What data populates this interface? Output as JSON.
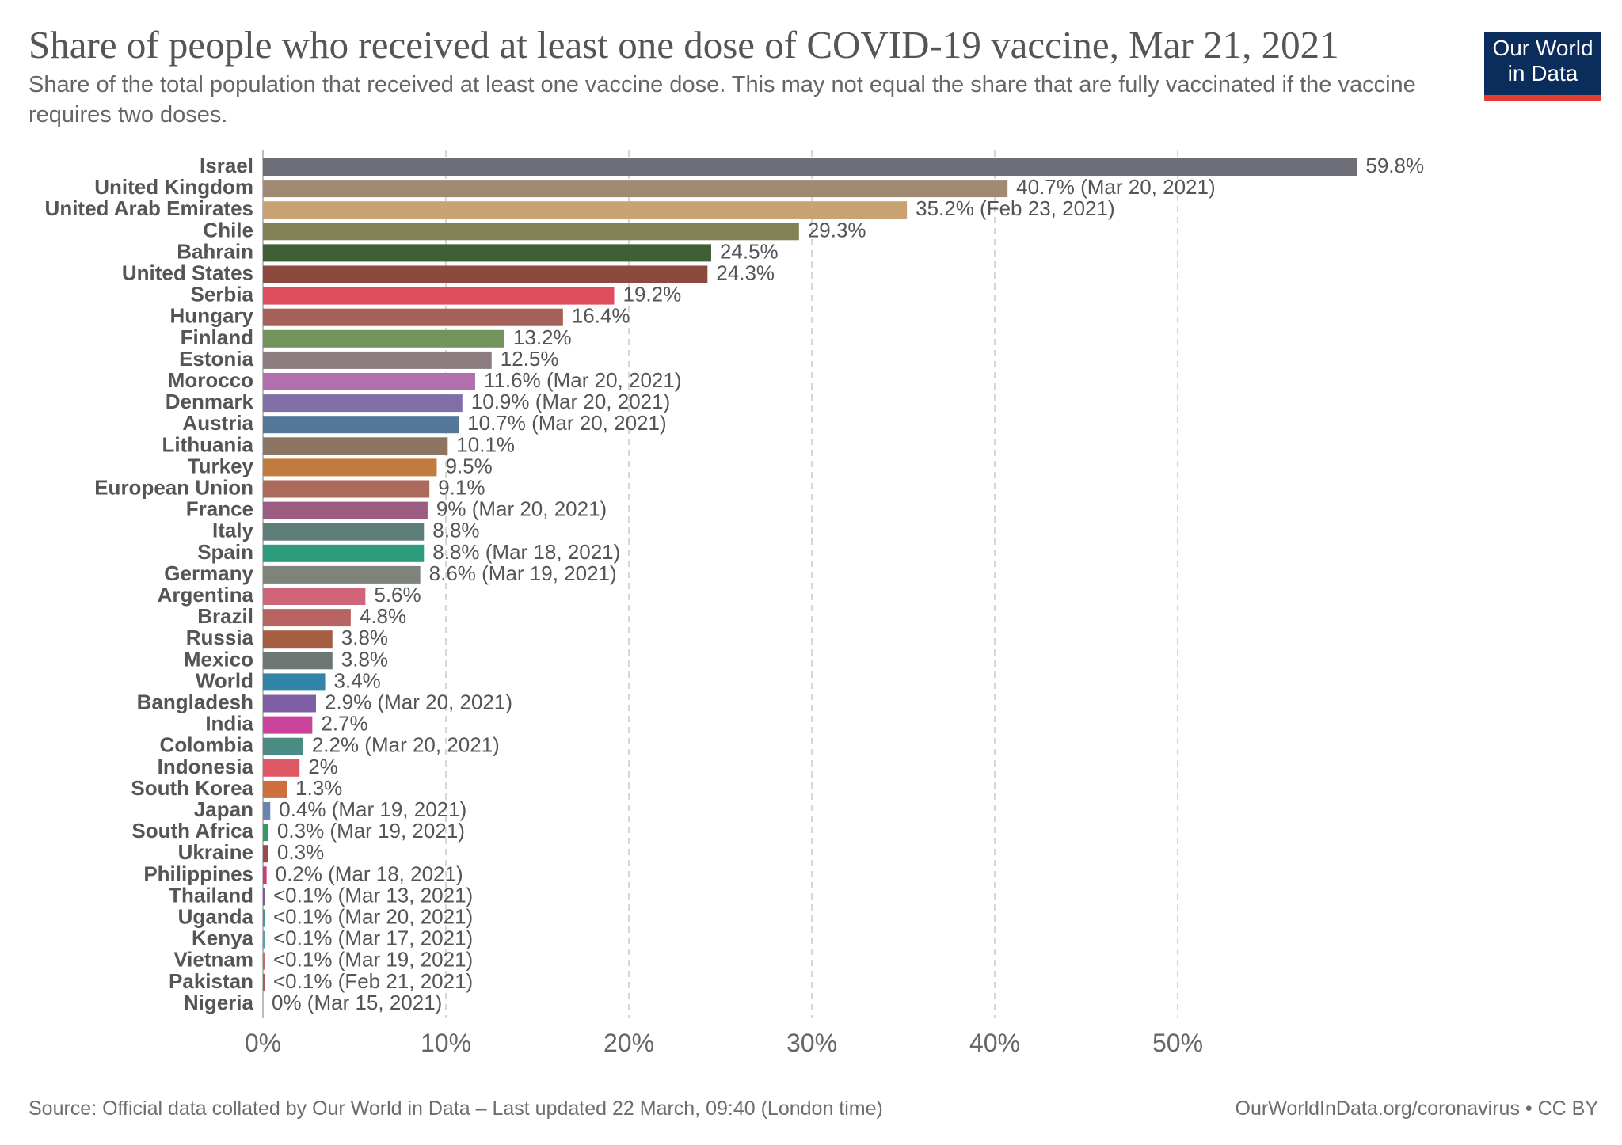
{
  "header": {
    "title": "Share of people who received at least one dose of COVID-19 vaccine, Mar 21, 2021",
    "subtitle": "Share of the total population that received at least one vaccine dose. This may not equal the share that are fully vaccinated if the vaccine requires two doses."
  },
  "logo": {
    "line1": "Our World",
    "line2": "in Data",
    "bg_color": "#0b2d5c",
    "accent_color": "#e33d2f"
  },
  "footer": {
    "source": "Source: Official data collated by Our World in Data – Last updated 22 March, 09:40 (London time)",
    "link": "OurWorldInData.org/coronavirus • CC BY"
  },
  "chart_data": {
    "type": "bar",
    "orientation": "horizontal",
    "xlim": [
      0,
      60
    ],
    "x_ticks": [
      0,
      10,
      20,
      30,
      40,
      50
    ],
    "x_tick_labels": [
      "0%",
      "10%",
      "20%",
      "30%",
      "40%",
      "50%"
    ],
    "grid": true,
    "bars": [
      {
        "category": "Israel",
        "value": 59.8,
        "label": "59.8%",
        "color": "#6d6e78"
      },
      {
        "category": "United Kingdom",
        "value": 40.7,
        "label": "40.7% (Mar 20, 2021)",
        "color": "#a08a74"
      },
      {
        "category": "United Arab Emirates",
        "value": 35.2,
        "label": "35.2% (Feb 23, 2021)",
        "color": "#c9a273"
      },
      {
        "category": "Chile",
        "value": 29.3,
        "label": "29.3%",
        "color": "#808253"
      },
      {
        "category": "Bahrain",
        "value": 24.5,
        "label": "24.5%",
        "color": "#3e5f33"
      },
      {
        "category": "United States",
        "value": 24.3,
        "label": "24.3%",
        "color": "#8c4a3e"
      },
      {
        "category": "Serbia",
        "value": 19.2,
        "label": "19.2%",
        "color": "#de4c5e"
      },
      {
        "category": "Hungary",
        "value": 16.4,
        "label": "16.4%",
        "color": "#a56057"
      },
      {
        "category": "Finland",
        "value": 13.2,
        "label": "13.2%",
        "color": "#72935c"
      },
      {
        "category": "Estonia",
        "value": 12.5,
        "label": "12.5%",
        "color": "#8c7c7f"
      },
      {
        "category": "Morocco",
        "value": 11.6,
        "label": "11.6% (Mar 20, 2021)",
        "color": "#b26fb0"
      },
      {
        "category": "Denmark",
        "value": 10.9,
        "label": "10.9% (Mar 20, 2021)",
        "color": "#7f6fa6"
      },
      {
        "category": "Austria",
        "value": 10.7,
        "label": "10.7% (Mar 20, 2021)",
        "color": "#537899"
      },
      {
        "category": "Lithuania",
        "value": 10.1,
        "label": "10.1%",
        "color": "#8b7562"
      },
      {
        "category": "Turkey",
        "value": 9.5,
        "label": "9.5%",
        "color": "#c37a3f"
      },
      {
        "category": "European Union",
        "value": 9.1,
        "label": "9.1%",
        "color": "#ab6a5c"
      },
      {
        "category": "France",
        "value": 9.0,
        "label": "9% (Mar 20, 2021)",
        "color": "#9c5b80"
      },
      {
        "category": "Italy",
        "value": 8.8,
        "label": "8.8%",
        "color": "#5e7d79"
      },
      {
        "category": "Spain",
        "value": 8.8,
        "label": "8.8% (Mar 18, 2021)",
        "color": "#2d9c7c"
      },
      {
        "category": "Germany",
        "value": 8.6,
        "label": "8.6% (Mar 19, 2021)",
        "color": "#7e8479"
      },
      {
        "category": "Argentina",
        "value": 5.6,
        "label": "5.6%",
        "color": "#d06579"
      },
      {
        "category": "Brazil",
        "value": 4.8,
        "label": "4.8%",
        "color": "#b86461"
      },
      {
        "category": "Russia",
        "value": 3.8,
        "label": "3.8%",
        "color": "#a55e40"
      },
      {
        "category": "Mexico",
        "value": 3.8,
        "label": "3.8%",
        "color": "#6c7775"
      },
      {
        "category": "World",
        "value": 3.4,
        "label": "3.4%",
        "color": "#3184a8"
      },
      {
        "category": "Bangladesh",
        "value": 2.9,
        "label": "2.9% (Mar 20, 2021)",
        "color": "#7f60a4"
      },
      {
        "category": "India",
        "value": 2.7,
        "label": "2.7%",
        "color": "#c9439a"
      },
      {
        "category": "Colombia",
        "value": 2.2,
        "label": "2.2% (Mar 20, 2021)",
        "color": "#4a8b84"
      },
      {
        "category": "Indonesia",
        "value": 2.0,
        "label": "2%",
        "color": "#df5866"
      },
      {
        "category": "South Korea",
        "value": 1.3,
        "label": "1.3%",
        "color": "#cf6f3e"
      },
      {
        "category": "Japan",
        "value": 0.4,
        "label": "0.4% (Mar 19, 2021)",
        "color": "#6784b4"
      },
      {
        "category": "South Africa",
        "value": 0.3,
        "label": "0.3% (Mar 19, 2021)",
        "color": "#2f9a63"
      },
      {
        "category": "Ukraine",
        "value": 0.3,
        "label": "0.3%",
        "color": "#9b4b50"
      },
      {
        "category": "Philippines",
        "value": 0.2,
        "label": "0.2% (Mar 18, 2021)",
        "color": "#c83d7a"
      },
      {
        "category": "Thailand",
        "value": 0.05,
        "label": "<0.1% (Mar 13, 2021)",
        "color": "#7a5aa0"
      },
      {
        "category": "Uganda",
        "value": 0.05,
        "label": "<0.1% (Mar 20, 2021)",
        "color": "#4b8fa3"
      },
      {
        "category": "Kenya",
        "value": 0.05,
        "label": "<0.1% (Mar 17, 2021)",
        "color": "#5aa3a0"
      },
      {
        "category": "Vietnam",
        "value": 0.05,
        "label": "<0.1% (Mar 19, 2021)",
        "color": "#c46b6b"
      },
      {
        "category": "Pakistan",
        "value": 0.05,
        "label": "<0.1% (Feb 21, 2021)",
        "color": "#a06060"
      },
      {
        "category": "Nigeria",
        "value": 0.0,
        "label": "0% (Mar 15, 2021)",
        "color": "#888888"
      }
    ]
  }
}
